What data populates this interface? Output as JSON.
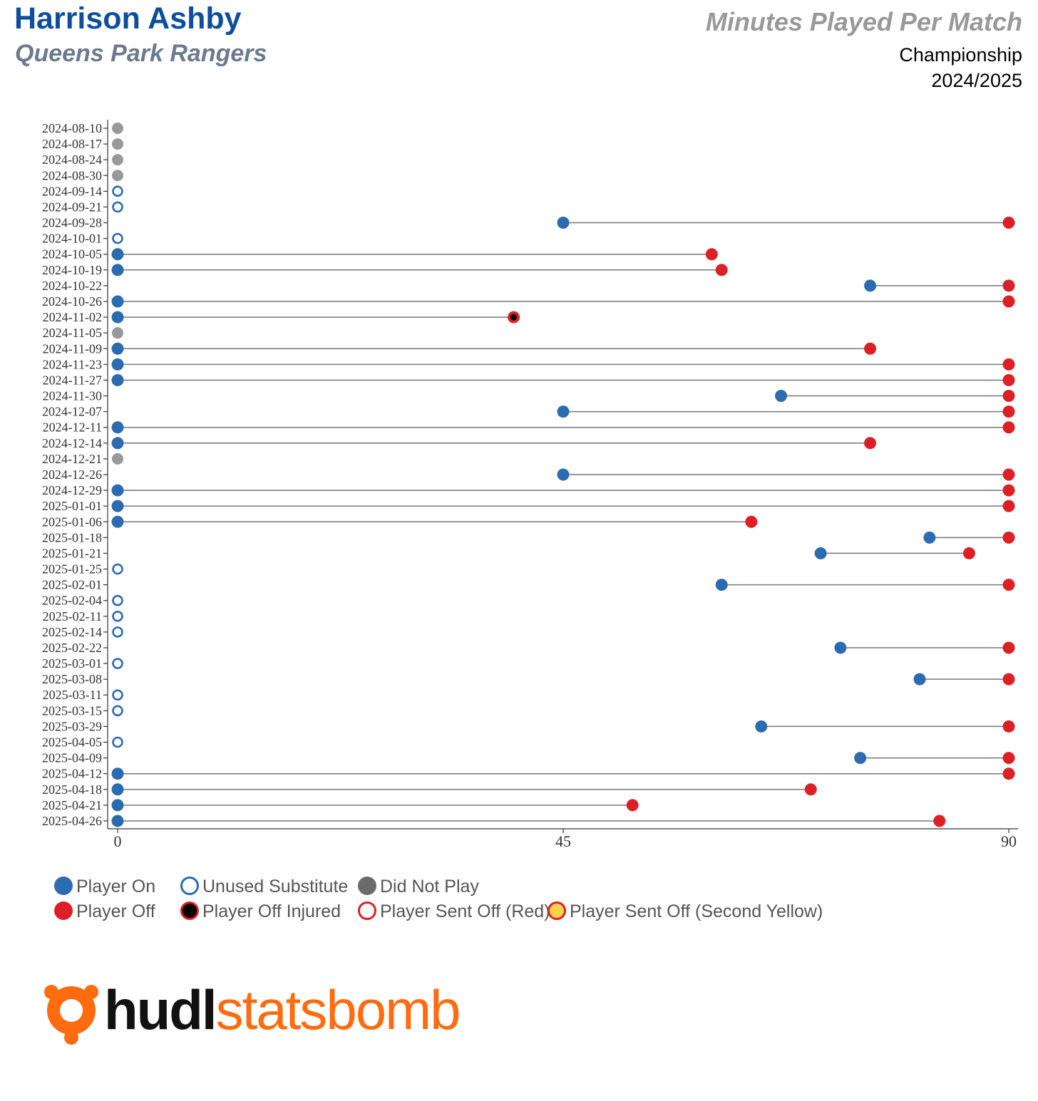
{
  "header": {
    "player_name": "Harrison Ashby",
    "team_name": "Queens Park Rangers",
    "chart_title": "Minutes Played Per Match",
    "competition": "Championship",
    "season": "2024/2025"
  },
  "colors": {
    "on": "#2b6cb0",
    "off": "#dd2026",
    "dnp": "#999999",
    "unused_stroke": "#2b6cb0",
    "line": "#777777",
    "injured_center": "#000000",
    "second_yellow": "#f7d24b",
    "logo_mark": "#ff6b0f",
    "logo_text_dark": "#111111",
    "logo_text_orange": "#ff6b0f"
  },
  "legend": {
    "player_on": "Player On",
    "unused_substitute": "Unused Substitute",
    "did_not_play": "Did Not Play",
    "player_off": "Player Off",
    "player_off_injured": "Player Off Injured",
    "player_sent_off_red": "Player Sent Off (Red)",
    "player_sent_off_second_yellow": "Player Sent Off (Second Yellow)"
  },
  "logo": {
    "part1": "hudl",
    "part2": "statsbomb"
  },
  "chart_data": {
    "type": "dumbbell",
    "x_ticks": [
      0,
      45,
      90
    ],
    "xlim": [
      0,
      90
    ],
    "legend_position": "bottom",
    "matches": [
      {
        "date": "2024-08-10",
        "status": "dnp"
      },
      {
        "date": "2024-08-17",
        "status": "dnp"
      },
      {
        "date": "2024-08-24",
        "status": "dnp"
      },
      {
        "date": "2024-08-30",
        "status": "dnp"
      },
      {
        "date": "2024-09-14",
        "status": "unused"
      },
      {
        "date": "2024-09-21",
        "status": "unused"
      },
      {
        "date": "2024-09-28",
        "status": "played",
        "on": 45,
        "off": 90
      },
      {
        "date": "2024-10-01",
        "status": "unused"
      },
      {
        "date": "2024-10-05",
        "status": "played",
        "on": 0,
        "off": 60
      },
      {
        "date": "2024-10-19",
        "status": "played",
        "on": 0,
        "off": 61
      },
      {
        "date": "2024-10-22",
        "status": "played",
        "on": 76,
        "off": 90
      },
      {
        "date": "2024-10-26",
        "status": "played",
        "on": 0,
        "off": 90
      },
      {
        "date": "2024-11-02",
        "status": "played",
        "on": 0,
        "off": 40,
        "off_type": "injured"
      },
      {
        "date": "2024-11-05",
        "status": "dnp"
      },
      {
        "date": "2024-11-09",
        "status": "played",
        "on": 0,
        "off": 76
      },
      {
        "date": "2024-11-23",
        "status": "played",
        "on": 0,
        "off": 90
      },
      {
        "date": "2024-11-27",
        "status": "played",
        "on": 0,
        "off": 90
      },
      {
        "date": "2024-11-30",
        "status": "played",
        "on": 67,
        "off": 90
      },
      {
        "date": "2024-12-07",
        "status": "played",
        "on": 45,
        "off": 90
      },
      {
        "date": "2024-12-11",
        "status": "played",
        "on": 0,
        "off": 90
      },
      {
        "date": "2024-12-14",
        "status": "played",
        "on": 0,
        "off": 76
      },
      {
        "date": "2024-12-21",
        "status": "dnp"
      },
      {
        "date": "2024-12-26",
        "status": "played",
        "on": 45,
        "off": 90
      },
      {
        "date": "2024-12-29",
        "status": "played",
        "on": 0,
        "off": 90
      },
      {
        "date": "2025-01-01",
        "status": "played",
        "on": 0,
        "off": 90
      },
      {
        "date": "2025-01-06",
        "status": "played",
        "on": 0,
        "off": 64
      },
      {
        "date": "2025-01-18",
        "status": "played",
        "on": 82,
        "off": 90
      },
      {
        "date": "2025-01-21",
        "status": "played",
        "on": 71,
        "off": 86
      },
      {
        "date": "2025-01-25",
        "status": "unused"
      },
      {
        "date": "2025-02-01",
        "status": "played",
        "on": 61,
        "off": 90
      },
      {
        "date": "2025-02-04",
        "status": "unused"
      },
      {
        "date": "2025-02-11",
        "status": "unused"
      },
      {
        "date": "2025-02-14",
        "status": "unused"
      },
      {
        "date": "2025-02-22",
        "status": "played",
        "on": 73,
        "off": 90
      },
      {
        "date": "2025-03-01",
        "status": "unused"
      },
      {
        "date": "2025-03-08",
        "status": "played",
        "on": 81,
        "off": 90
      },
      {
        "date": "2025-03-11",
        "status": "unused"
      },
      {
        "date": "2025-03-15",
        "status": "unused"
      },
      {
        "date": "2025-03-29",
        "status": "played",
        "on": 65,
        "off": 90
      },
      {
        "date": "2025-04-05",
        "status": "unused"
      },
      {
        "date": "2025-04-09",
        "status": "played",
        "on": 75,
        "off": 90
      },
      {
        "date": "2025-04-12",
        "status": "played",
        "on": 0,
        "off": 90
      },
      {
        "date": "2025-04-18",
        "status": "played",
        "on": 0,
        "off": 70
      },
      {
        "date": "2025-04-21",
        "status": "played",
        "on": 0,
        "off": 52
      },
      {
        "date": "2025-04-26",
        "status": "played",
        "on": 0,
        "off": 83
      }
    ]
  }
}
